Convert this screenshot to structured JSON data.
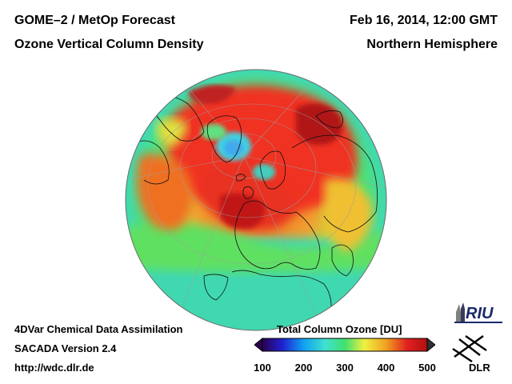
{
  "header": {
    "title_line1": "GOME–2 / MetOp Forecast",
    "title_line2": "Ozone Vertical Column Density",
    "date": "Feb 16, 2014, 12:00 GMT",
    "region": "Northern Hemisphere"
  },
  "footer": {
    "method": "4DVar Chemical Data Assimilation",
    "version": "SACADA Version 2.4",
    "url": "http://wdc.dlr.de"
  },
  "colorbar": {
    "title": "Total Column Ozone [DU]",
    "ticks": [
      "100",
      "200",
      "300",
      "400",
      "500"
    ],
    "min": 100,
    "max": 500,
    "colors": [
      "#2a0050",
      "#2020d0",
      "#10a0f0",
      "#40e0d0",
      "#40e070",
      "#f0f040",
      "#f0a020",
      "#e02020",
      "#b01010"
    ]
  },
  "logos": {
    "riu": "RIU",
    "dlr": "DLR"
  },
  "map": {
    "projection": "orthographic",
    "description_colors": {
      "ocean_low": "#40e0c0",
      "mid": "#50e070",
      "high": "#f03020",
      "very_high": "#c01818",
      "min_blue": "#40b0f0"
    }
  }
}
